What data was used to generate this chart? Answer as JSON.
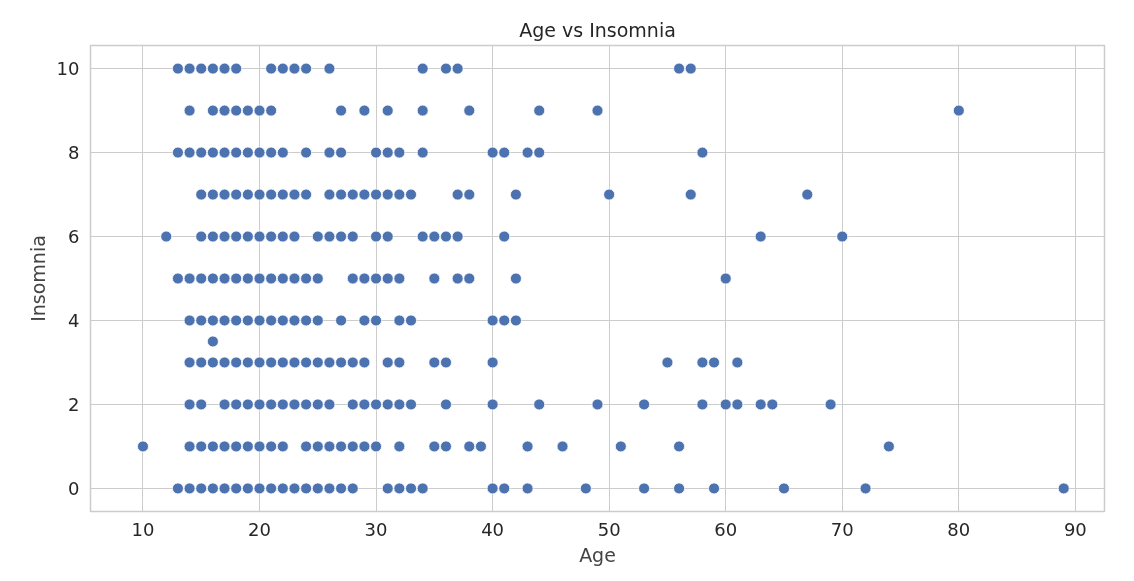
{
  "chart_data": {
    "type": "scatter",
    "title": "Age vs Insomnia",
    "xlabel": "Age",
    "ylabel": "Insomnia",
    "x": [
      13,
      14,
      15,
      16,
      17,
      18,
      21,
      22,
      23,
      24,
      26,
      34,
      36,
      37,
      56,
      57,
      14,
      16,
      17,
      18,
      19,
      20,
      21,
      27,
      29,
      31,
      34,
      38,
      44,
      49,
      80,
      13,
      14,
      15,
      16,
      17,
      18,
      19,
      20,
      21,
      22,
      24,
      26,
      27,
      30,
      31,
      32,
      34,
      40,
      41,
      43,
      44,
      58,
      15,
      16,
      17,
      18,
      19,
      20,
      21,
      22,
      23,
      24,
      26,
      27,
      28,
      29,
      30,
      31,
      32,
      33,
      37,
      38,
      42,
      50,
      57,
      67,
      12,
      15,
      16,
      17,
      18,
      19,
      20,
      21,
      22,
      23,
      25,
      26,
      27,
      28,
      30,
      31,
      34,
      35,
      36,
      37,
      41,
      63,
      70,
      13,
      14,
      15,
      16,
      17,
      18,
      19,
      20,
      21,
      22,
      23,
      24,
      25,
      28,
      29,
      30,
      31,
      32,
      35,
      37,
      38,
      42,
      60,
      14,
      15,
      16,
      17,
      18,
      19,
      20,
      21,
      22,
      23,
      24,
      25,
      27,
      29,
      30,
      32,
      33,
      40,
      41,
      42,
      16,
      14,
      15,
      16,
      17,
      18,
      19,
      20,
      21,
      22,
      23,
      24,
      25,
      26,
      27,
      28,
      29,
      31,
      32,
      35,
      36,
      40,
      55,
      58,
      59,
      61,
      14,
      15,
      17,
      18,
      19,
      20,
      21,
      22,
      23,
      24,
      25,
      26,
      28,
      29,
      30,
      31,
      32,
      33,
      36,
      40,
      44,
      49,
      53,
      58,
      60,
      61,
      63,
      64,
      69,
      10,
      14,
      15,
      16,
      17,
      18,
      19,
      20,
      21,
      22,
      24,
      25,
      26,
      27,
      28,
      29,
      30,
      32,
      35,
      36,
      38,
      39,
      43,
      46,
      51,
      56,
      74,
      13,
      14,
      15,
      16,
      17,
      18,
      19,
      20,
      21,
      22,
      23,
      24,
      25,
      26,
      27,
      28,
      31,
      32,
      33,
      34,
      40,
      41,
      43,
      48,
      53,
      56,
      59,
      65,
      72,
      89
    ],
    "values": [
      10,
      10,
      10,
      10,
      10,
      10,
      10,
      10,
      10,
      10,
      10,
      10,
      10,
      10,
      10,
      10,
      9,
      9,
      9,
      9,
      9,
      9,
      9,
      9,
      9,
      9,
      9,
      9,
      9,
      9,
      9,
      8,
      8,
      8,
      8,
      8,
      8,
      8,
      8,
      8,
      8,
      8,
      8,
      8,
      8,
      8,
      8,
      8,
      8,
      8,
      8,
      8,
      8,
      7,
      7,
      7,
      7,
      7,
      7,
      7,
      7,
      7,
      7,
      7,
      7,
      7,
      7,
      7,
      7,
      7,
      7,
      7,
      7,
      7,
      7,
      7,
      7,
      6,
      6,
      6,
      6,
      6,
      6,
      6,
      6,
      6,
      6,
      6,
      6,
      6,
      6,
      6,
      6,
      6,
      6,
      6,
      6,
      6,
      6,
      6,
      5,
      5,
      5,
      5,
      5,
      5,
      5,
      5,
      5,
      5,
      5,
      5,
      5,
      5,
      5,
      5,
      5,
      5,
      5,
      5,
      5,
      5,
      5,
      4,
      4,
      4,
      4,
      4,
      4,
      4,
      4,
      4,
      4,
      4,
      4,
      4,
      4,
      4,
      4,
      4,
      4,
      4,
      4,
      3.5,
      3,
      3,
      3,
      3,
      3,
      3,
      3,
      3,
      3,
      3,
      3,
      3,
      3,
      3,
      3,
      3,
      3,
      3,
      3,
      3,
      3,
      3,
      3,
      3,
      3,
      2,
      2,
      2,
      2,
      2,
      2,
      2,
      2,
      2,
      2,
      2,
      2,
      2,
      2,
      2,
      2,
      2,
      2,
      2,
      2,
      2,
      2,
      2,
      2,
      2,
      2,
      2,
      2,
      2,
      1,
      1,
      1,
      1,
      1,
      1,
      1,
      1,
      1,
      1,
      1,
      1,
      1,
      1,
      1,
      1,
      1,
      1,
      1,
      1,
      1,
      1,
      1,
      1,
      1,
      1,
      1,
      0,
      0,
      0,
      0,
      0,
      0,
      0,
      0,
      0,
      0,
      0,
      0,
      0,
      0,
      0,
      0,
      0,
      0,
      0,
      0,
      0,
      0,
      0,
      0,
      0,
      0,
      0,
      0,
      0,
      0
    ],
    "color": "#4c72b0",
    "marker": "circle",
    "grid": true,
    "xlim": [
      5.5,
      92.5
    ],
    "ylim": [
      -0.55,
      10.55
    ],
    "xticks": [
      10,
      20,
      30,
      40,
      50,
      60,
      70,
      80,
      90
    ],
    "yticks": [
      0,
      2,
      4,
      6,
      8,
      10
    ]
  }
}
